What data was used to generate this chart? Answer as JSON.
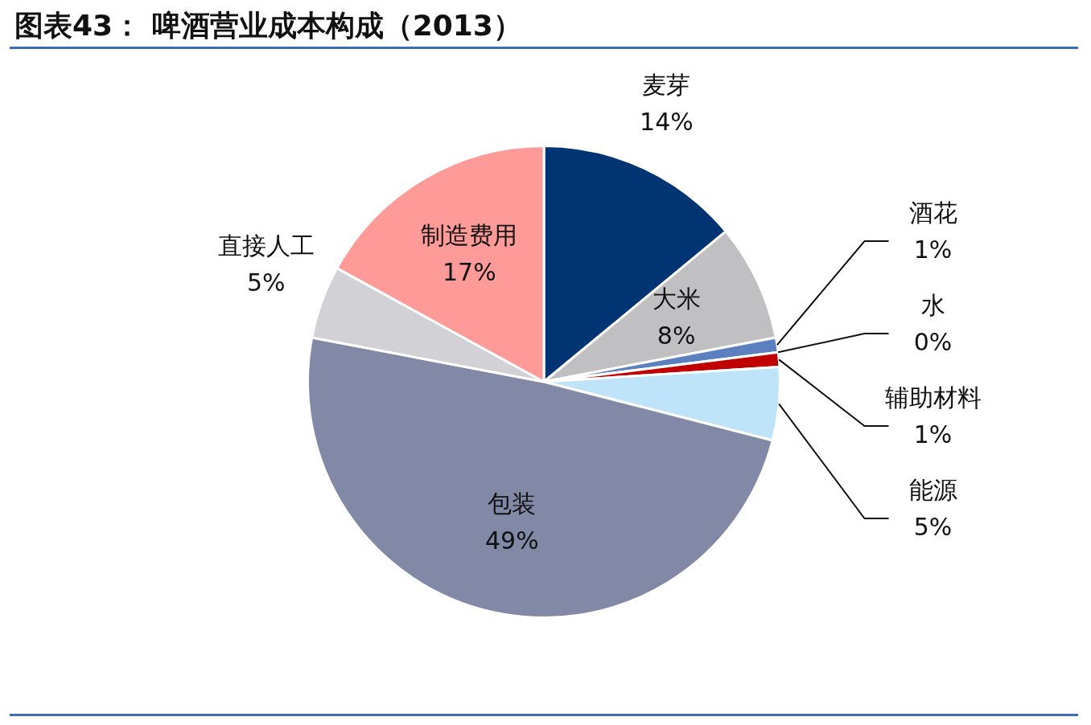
{
  "chart_data": {
    "type": "pie",
    "title": "图表43： 啤酒营业成本构成（2013）",
    "categories": [
      "麦芽",
      "大米",
      "酒花",
      "水",
      "辅助材料",
      "能源",
      "包装",
      "直接人工",
      "制造费用"
    ],
    "values": [
      14,
      8,
      1,
      0,
      1,
      5,
      49,
      5,
      17
    ],
    "value_labels": [
      "14%",
      "8%",
      "1%",
      "0%",
      "1%",
      "5%",
      "49%",
      "5%",
      "17%"
    ],
    "colors": [
      "#003473",
      "#c0c0c2",
      "#5b7fbf",
      "#9fb3d9",
      "#c00000",
      "#bfe3f8",
      "#8189a6",
      "#d2d2d6",
      "#fe9b99"
    ],
    "legend": false
  }
}
